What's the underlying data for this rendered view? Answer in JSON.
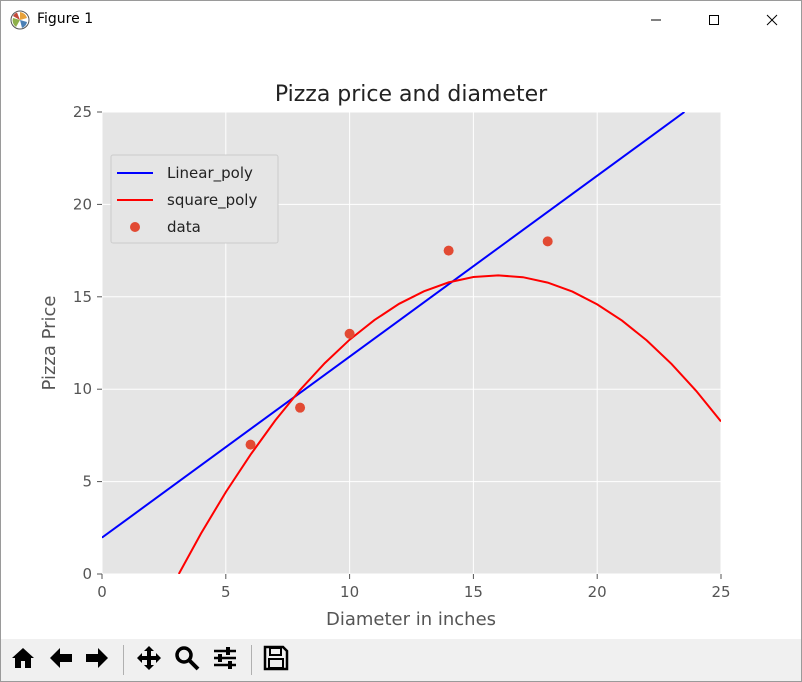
{
  "window": {
    "title": "Figure 1",
    "icons": {
      "app": "matplotlib-logo-icon",
      "minimize": "minimize-icon",
      "maximize": "maximize-icon",
      "close": "close-icon"
    }
  },
  "toolbar": {
    "buttons": [
      {
        "name": "home",
        "icon": "home-icon"
      },
      {
        "name": "back",
        "icon": "arrow-left-icon"
      },
      {
        "name": "forward",
        "icon": "arrow-right-icon"
      },
      {
        "name": "pan",
        "icon": "move-icon"
      },
      {
        "name": "zoom",
        "icon": "magnifier-icon"
      },
      {
        "name": "configure",
        "icon": "sliders-icon"
      },
      {
        "name": "save",
        "icon": "floppy-disk-icon"
      }
    ]
  },
  "colors": {
    "plot_bg": "#e5e5e5",
    "grid": "#ffffff",
    "axis_text": "#555555",
    "linear": "#0000ff",
    "square": "#ff0000",
    "points": "#e24a33"
  },
  "chart_data": {
    "type": "line",
    "title": "Pizza price and diameter",
    "xlabel": "Diameter in inches",
    "ylabel": "Pizza Price",
    "xlim": [
      0,
      25
    ],
    "ylim": [
      0,
      25
    ],
    "xticks": [
      "0",
      "5",
      "10",
      "15",
      "20",
      "25"
    ],
    "yticks": [
      "0",
      "5",
      "10",
      "15",
      "20",
      "25"
    ],
    "grid": true,
    "legend_position": "top-left",
    "series": [
      {
        "name": "Linear_poly",
        "kind": "line",
        "color": "#0000ff",
        "x": [
          0,
          23.52
        ],
        "y": [
          1.97,
          25
        ]
      },
      {
        "name": "square_poly",
        "kind": "line",
        "color": "#ff0000",
        "x": [
          3.1,
          4,
          5,
          6,
          7,
          8,
          9,
          10,
          11,
          12,
          13,
          14,
          15,
          16,
          17,
          18,
          19,
          20,
          21,
          22,
          23,
          24,
          25
        ],
        "y": [
          0.0,
          2.19,
          4.43,
          6.46,
          8.31,
          9.96,
          11.41,
          12.68,
          13.74,
          14.62,
          15.3,
          15.78,
          16.07,
          16.16,
          16.06,
          15.77,
          15.28,
          14.59,
          13.71,
          12.64,
          11.37,
          9.91,
          8.25
        ]
      },
      {
        "name": "data",
        "kind": "scatter",
        "color": "#e24a33",
        "x": [
          6,
          8,
          10,
          14,
          18
        ],
        "y": [
          7,
          9,
          13,
          17.5,
          18
        ]
      }
    ]
  }
}
